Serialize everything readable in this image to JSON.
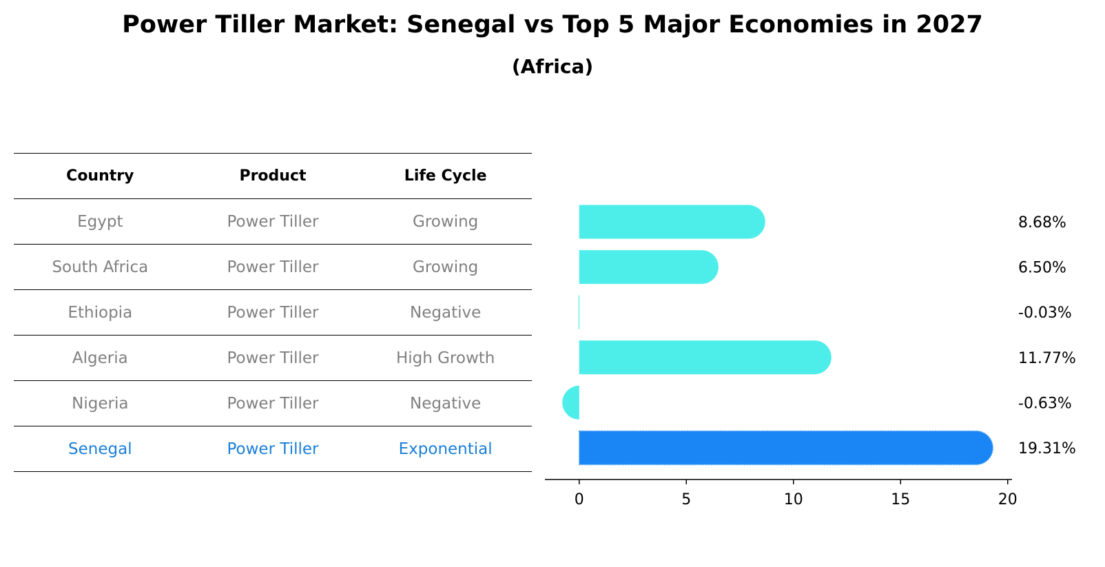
{
  "title": "Power Tiller Market: Senegal vs Top 5 Major Economies in 2027",
  "subtitle": "(Africa)",
  "table": {
    "headers": [
      "Country",
      "Product",
      "Life Cycle"
    ],
    "rows": [
      [
        "Egypt",
        "Power Tiller",
        "Growing"
      ],
      [
        "South Africa",
        "Power Tiller",
        "Growing"
      ],
      [
        "Ethiopia",
        "Power Tiller",
        "Negative"
      ],
      [
        "Algeria",
        "Power Tiller",
        "High Growth"
      ],
      [
        "Nigeria",
        "Power Tiller",
        "Negative"
      ],
      [
        "Senegal",
        "Power Tiller",
        "Exponential"
      ]
    ],
    "highlight_row": 5
  },
  "colors": {
    "bar": "#4deeea",
    "highlight_bar": "#1a86f5",
    "highlight_text": "#1a7fd8",
    "muted_text": "#808080"
  },
  "chart_data": {
    "type": "bar",
    "orientation": "horizontal",
    "categories": [
      "Egypt",
      "South Africa",
      "Ethiopia",
      "Algeria",
      "Nigeria",
      "Senegal"
    ],
    "values": [
      8.68,
      6.5,
      -0.03,
      11.77,
      -0.63,
      19.31
    ],
    "value_labels": [
      "8.68%",
      "6.50%",
      "-0.03%",
      "11.77%",
      "-0.63%",
      "19.31%"
    ],
    "highlight_index": 5,
    "xlim": [
      -1.6,
      20.2
    ],
    "xticks": [
      0,
      5,
      10,
      15,
      20
    ],
    "xtick_labels": [
      "0",
      "5",
      "10",
      "15",
      "20"
    ],
    "grid": false
  }
}
